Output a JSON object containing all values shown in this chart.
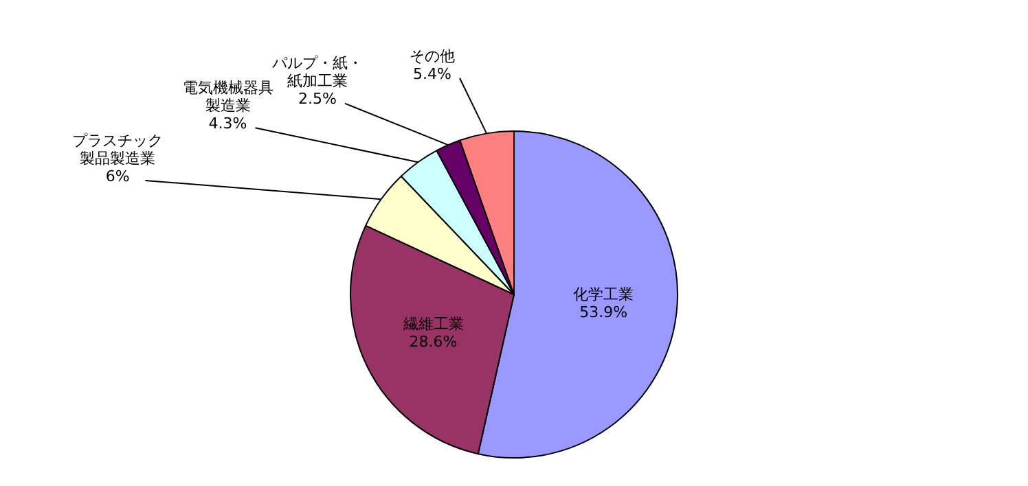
{
  "chart_data": {
    "type": "pie",
    "categories": [
      "化学工業",
      "繊維工業",
      "プラスチック製品製造業",
      "電気機械器具製造業",
      "パルプ・紙・紙加工業",
      "その他"
    ],
    "values": [
      53.9,
      28.6,
      6,
      4.3,
      2.5,
      5.4
    ],
    "value_labels": [
      "53.9%",
      "28.6%",
      "6%",
      "4.3%",
      "2.5%",
      "5.4%"
    ],
    "colors": [
      "#9999ff",
      "#993366",
      "#ffffcc",
      "#ccffff",
      "#660066",
      "#ff8080"
    ],
    "legend": false
  }
}
